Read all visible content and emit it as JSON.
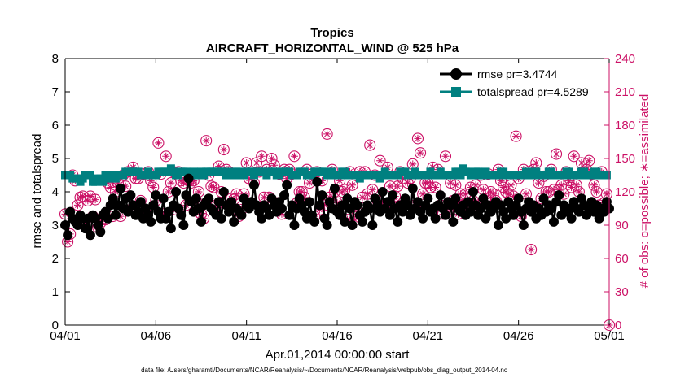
{
  "chart_data": {
    "type": "line",
    "title": "Tropics",
    "subtitle": "AIRCRAFT_HORIZONTAL_WIND @ 525 hPa",
    "xlabel": "Apr.01,2014 00:00:00 start",
    "ylabel_left": "rmse and totalspread",
    "ylabel_right": "# of obs: o=possible; ∗=assimilated",
    "x_ticks": [
      "04/01",
      "04/06",
      "04/11",
      "04/16",
      "04/21",
      "04/26",
      "05/01"
    ],
    "x_range_days": [
      0,
      30
    ],
    "ylim_left": [
      0,
      8
    ],
    "y_ticks_left": [
      "0",
      "1",
      "2",
      "3",
      "4",
      "5",
      "6",
      "7",
      "8"
    ],
    "ylim_right": [
      0,
      240
    ],
    "y_ticks_right": [
      "0",
      "30",
      "60",
      "90",
      "120",
      "150",
      "180",
      "210",
      "240"
    ],
    "footer": "data file: /Users/gharamti/Documents/NCAR/Reanalysis/~/Documents/NCAR/Reanalysis/webpub/obs_diag_output_2014-04.nc",
    "colors": {
      "rmse": "#000000",
      "spread": "#008080",
      "obs": "#cc1166"
    },
    "series": [
      {
        "name": "rmse pr=3.4744",
        "axis": "left",
        "values": [
          3.0,
          2.7,
          3.4,
          3.2,
          3.1,
          3.0,
          3.3,
          3.2,
          2.9,
          3.2,
          2.7,
          3.3,
          3.2,
          3.0,
          2.8,
          3.3,
          3.4,
          3.2,
          3.6,
          3.8,
          3.3,
          3.6,
          4.1,
          3.5,
          3.8,
          3.4,
          3.9,
          3.6,
          3.3,
          3.4,
          3.7,
          3.2,
          3.5,
          3.3,
          3.1,
          3.6,
          3.9,
          3.4,
          3.2,
          3.8,
          3.2,
          3.4,
          2.9,
          3.6,
          4.0,
          3.5,
          3.3,
          3.0,
          3.9,
          4.4,
          3.7,
          3.4,
          3.8,
          3.5,
          3.1,
          3.6,
          3.7,
          3.8,
          3.5,
          3.4,
          3.3,
          3.7,
          3.2,
          4.0,
          3.6,
          3.4,
          3.7,
          3.1,
          3.5,
          3.4,
          3.3,
          3.8,
          3.6,
          3.5,
          3.7,
          4.2,
          3.6,
          3.4,
          3.2,
          3.6,
          3.5,
          3.3,
          3.8,
          3.6,
          3.4,
          3.7,
          3.5,
          3.9,
          4.2,
          3.3,
          3.6,
          3.0,
          3.5,
          3.8,
          3.6,
          3.4,
          3.2,
          3.7,
          3.3,
          3.1,
          4.3,
          3.6,
          3.9,
          3.2,
          3.0,
          3.7,
          3.5,
          4.1,
          3.4,
          3.3,
          3.6,
          3.1,
          3.8,
          3.5,
          3.0,
          3.7,
          3.6,
          3.3,
          3.1,
          3.4,
          3.6,
          3.5,
          3.0,
          3.8,
          3.6,
          3.4,
          4.0,
          3.5,
          3.7,
          3.3,
          3.9,
          3.5,
          3.1,
          3.6,
          3.4,
          3.8,
          3.6,
          3.3,
          4.1,
          3.5,
          3.7,
          3.4,
          3.2,
          3.6,
          3.8,
          3.4,
          3.5,
          3.2,
          3.6,
          3.9,
          3.5,
          3.3,
          3.7,
          3.6,
          3.1,
          3.8,
          3.5,
          3.4,
          3.6,
          3.3,
          3.7,
          3.4,
          4.0,
          3.6,
          3.3,
          3.5,
          3.8,
          3.2,
          3.6,
          3.4,
          3.5,
          3.7,
          3.0,
          3.6,
          3.4,
          3.2,
          3.7,
          3.5,
          3.3,
          3.6,
          3.8,
          3.4,
          3.0,
          3.5,
          3.7,
          3.4,
          3.6,
          3.2,
          3.5,
          3.3,
          3.8,
          3.4,
          3.6,
          3.5,
          3.1,
          3.7,
          3.9,
          3.3,
          3.6,
          3.4,
          3.5,
          3.2,
          3.7,
          3.5,
          3.4,
          3.8,
          3.6,
          3.3,
          3.5,
          3.7,
          3.4,
          3.6,
          3.2,
          3.5,
          3.4,
          3.7,
          3.5
        ]
      },
      {
        "name": "totalspread pr=4.5289",
        "axis": "left",
        "values": [
          4.5,
          4.5,
          4.5,
          4.4,
          4.4,
          4.4,
          4.3,
          4.4,
          4.5,
          4.5,
          4.5,
          4.3,
          4.3,
          4.4,
          4.4,
          4.3,
          4.5,
          4.5,
          4.4,
          4.5,
          4.4,
          4.5,
          4.5,
          4.5,
          4.6,
          4.6,
          4.6,
          4.6,
          4.6,
          4.6,
          4.5,
          4.5,
          4.5,
          4.6,
          4.5,
          4.5,
          4.5,
          4.6,
          4.6,
          4.6,
          4.6,
          4.6,
          4.7,
          4.6,
          4.5,
          4.5,
          4.6,
          4.6,
          4.6,
          4.5,
          4.5,
          4.6,
          4.5,
          4.5,
          4.6,
          4.5,
          4.6,
          4.6,
          4.6,
          4.6,
          4.6,
          4.6,
          4.6,
          4.6,
          4.5,
          4.5,
          4.6,
          4.5,
          4.6,
          4.6,
          4.5,
          4.5,
          4.6,
          4.6,
          4.6,
          4.5,
          4.6,
          4.6,
          4.6,
          4.6,
          4.5,
          4.6,
          4.6,
          4.6,
          4.5,
          4.5,
          4.6,
          4.6,
          4.6,
          4.6,
          4.5,
          4.5,
          4.5,
          4.6,
          4.6,
          4.6,
          4.5,
          4.5,
          4.5,
          4.6,
          4.6,
          4.6,
          4.6,
          4.6,
          4.5,
          4.5,
          4.6,
          4.5,
          4.5,
          4.5,
          4.6,
          4.6,
          4.5,
          4.5,
          4.5,
          4.5,
          4.5,
          4.4,
          4.5,
          4.5,
          4.5,
          4.5,
          4.5,
          4.5,
          4.5,
          4.4,
          4.5,
          4.6,
          4.5,
          4.5,
          4.5,
          4.5,
          4.5,
          4.6,
          4.6,
          4.6,
          4.5,
          4.5,
          4.5,
          4.6,
          4.5,
          4.5,
          4.5,
          4.5,
          4.5,
          4.6,
          4.5,
          4.5,
          4.5,
          4.6,
          4.5,
          4.5,
          4.5,
          4.5,
          4.5,
          4.6,
          4.6,
          4.5,
          4.7,
          4.6,
          4.6,
          4.5,
          4.5,
          4.6,
          4.6,
          4.5,
          4.5,
          4.6,
          4.5,
          4.5,
          4.5,
          4.5,
          4.5,
          4.6,
          4.6,
          4.5,
          4.5,
          4.5,
          4.5,
          4.5,
          4.5,
          4.5,
          4.5,
          4.6,
          4.5,
          4.5,
          4.6,
          4.6,
          4.5,
          4.5,
          4.5,
          4.5,
          4.6,
          4.6,
          4.5,
          4.5,
          4.5,
          4.5,
          4.5,
          4.6,
          4.6,
          4.5,
          4.5,
          4.5,
          4.5,
          4.6,
          4.6,
          4.5,
          4.5,
          4.5,
          4.6,
          4.6,
          4.5,
          4.5,
          4.5,
          4.5
        ]
      },
      {
        "name": "# of obs",
        "axis": "right",
        "values": [
          100,
          75,
          82,
          135,
          130,
          108,
          115,
          116,
          94,
          112,
          116,
          98,
          113,
          88,
          92,
          96,
          95,
          128,
          124,
          98,
          120,
          128,
          98,
          135,
          125,
          138,
          104,
          142,
          132,
          132,
          112,
          136,
          101,
          138,
          130,
          124,
          112,
          164,
          136,
          100,
          152,
          120,
          128,
          138,
          104,
          138,
          130,
          128,
          108,
          130,
          128,
          130,
          112,
          120,
          100,
          96,
          166,
          135,
          125,
          124,
          108,
          143,
          120,
          158,
          140,
          138,
          114,
          113,
          118,
          98,
          104,
          118,
          146,
          132,
          136,
          128,
          146,
          138,
          152,
          115,
          140,
          115,
          150,
          144,
          110,
          136,
          100,
          140,
          132,
          140,
          136,
          152,
          110,
          120,
          120,
          115,
          140,
          128,
          136,
          98,
          138,
          104,
          130,
          108,
          172,
          115,
          140,
          120,
          110,
          130,
          120,
          122,
          95,
          138,
          126,
          95,
          102,
          138,
          115,
          138,
          118,
          162,
          122,
          135,
          112,
          148,
          108,
          108,
          142,
          125,
          110,
          116,
          125,
          138,
          132,
          110,
          128,
          132,
          145,
          108,
          168,
          155,
          118,
          128,
          128,
          124,
          142,
          124,
          140,
          108,
          100,
          152,
          102,
          128,
          112,
          126,
          100,
          118,
          108,
          118,
          110,
          124,
          112,
          126,
          108,
          135,
          122,
          114,
          136,
          120,
          118,
          112,
          140,
          130,
          124,
          120,
          118,
          126,
          116,
          170,
          132,
          98,
          140,
          118,
          138,
          68,
          140,
          146,
          128,
          114,
          134,
          120,
          120,
          140,
          122,
          154,
          122,
          126,
          118,
          138,
          130,
          124,
          152,
          126,
          120,
          146,
          138,
          140,
          148,
          136,
          126,
          120,
          108,
          138,
          110,
          118,
          0
        ]
      }
    ]
  }
}
